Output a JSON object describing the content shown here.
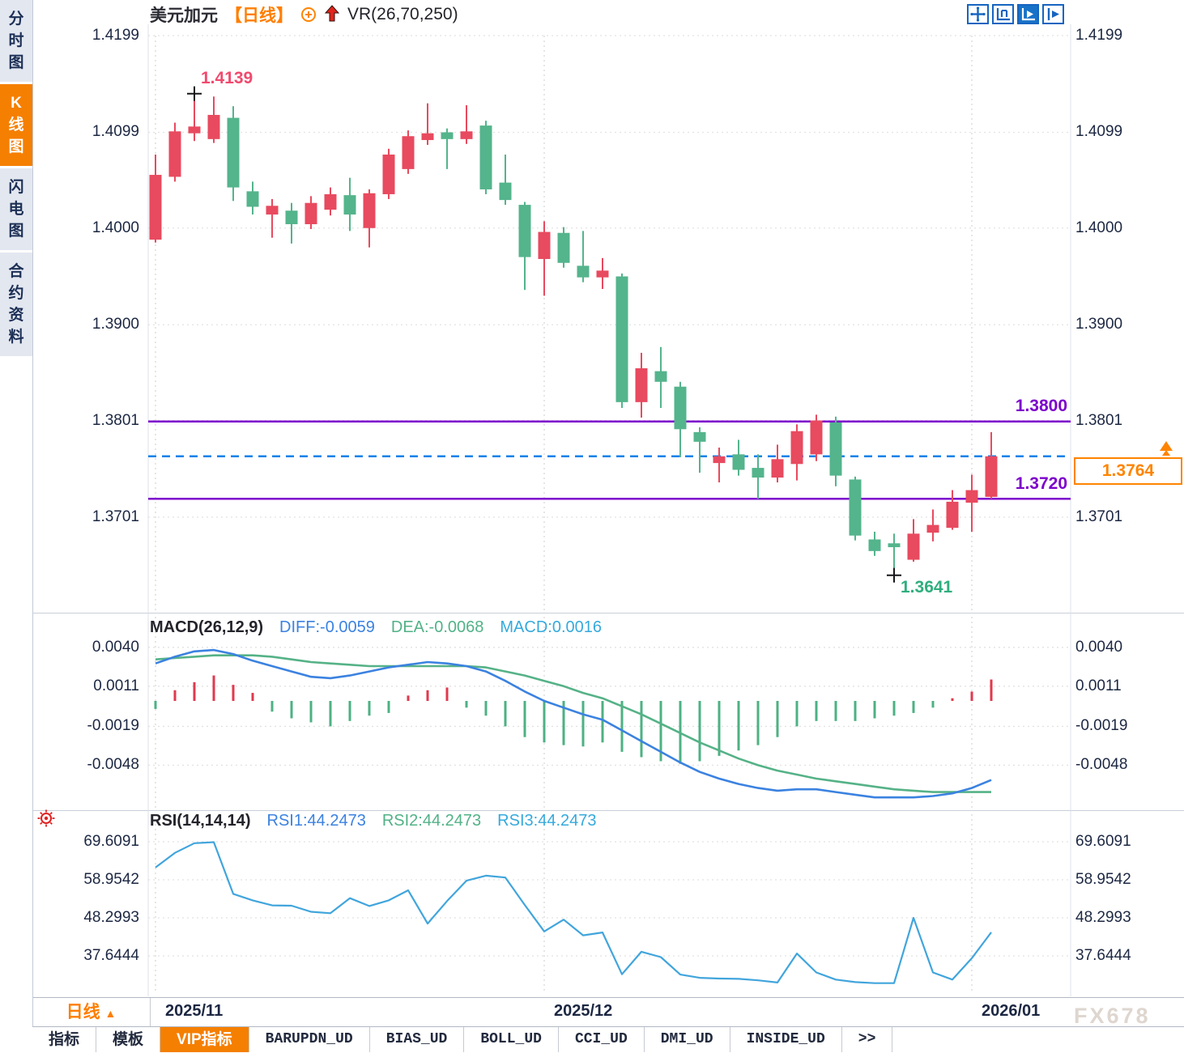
{
  "title": {
    "symbol": "美元加元",
    "period": "【日线】",
    "vr": "VR(26,70,250)"
  },
  "toolbar": {
    "icons": [
      "move-cross-icon",
      "axis-scale-icon",
      "axis-play-icon",
      "pan-right-icon"
    ]
  },
  "sidebar": {
    "items": [
      {
        "label": "分时图",
        "active": false
      },
      {
        "label": "K线图",
        "active": true
      },
      {
        "label": "闪电图",
        "active": false
      },
      {
        "label": "合约资料",
        "active": false
      }
    ]
  },
  "main_chart": {
    "y_axis_labels": [
      "1.4199",
      "1.4099",
      "1.4000",
      "1.3900",
      "1.3801",
      "1.3701"
    ],
    "high_label": "1.4139",
    "low_label": "1.3641",
    "hlines": [
      {
        "label": "1.3800",
        "price": 1.38
      },
      {
        "label": "1.3720",
        "price": 1.372
      }
    ],
    "current_price": {
      "label": "1.3764",
      "price": 1.3764
    }
  },
  "macd": {
    "header": {
      "name": "MACD(26,12,9)",
      "diff": "DIFF:-0.0059",
      "dea": "DEA:-0.0068",
      "macd": "MACD:0.0016"
    },
    "y_axis_labels": [
      "0.0040",
      "0.0011",
      "-0.0019",
      "-0.0048"
    ]
  },
  "rsi": {
    "header": {
      "name": "RSI(14,14,14)",
      "rsi1": "RSI1:44.2473",
      "rsi2": "RSI2:44.2473",
      "rsi3": "RSI3:44.2473"
    },
    "y_axis_labels": [
      "69.6091",
      "58.9542",
      "48.2993",
      "37.6444"
    ]
  },
  "footer": {
    "period_label": "日线",
    "period_arrow": "▲",
    "tabs": [
      {
        "label": "指标",
        "active": false
      },
      {
        "label": "模板",
        "active": false
      },
      {
        "label": "VIP指标",
        "active": true
      },
      {
        "label": "BARUPDN_UD",
        "active": false
      },
      {
        "label": "BIAS_UD",
        "active": false
      },
      {
        "label": "BOLL_UD",
        "active": false
      },
      {
        "label": "CCI_UD",
        "active": false
      },
      {
        "label": "DMI_UD",
        "active": false
      },
      {
        "label": "INSIDE_UD",
        "active": false
      },
      {
        "label": ">>",
        "active": false
      }
    ]
  },
  "watermark": "FX678",
  "colors": {
    "bull_red": "#e84a5f",
    "bear_green": "#54b48c",
    "hline_purple": "#7d00cc",
    "current_blue": "#0c82e8",
    "accent_orange": "#ff8400",
    "diff_blue": "#3b82e0",
    "dea_green": "#55b287",
    "hist_red": "#e0394e",
    "hist_green": "#4db183",
    "rsi_blue": "#41a5dc"
  },
  "chart_data": {
    "type": "candlestick",
    "symbol": "美元加元",
    "period": "日线",
    "x_ticks": [
      {
        "label": "2025/11",
        "index": 0
      },
      {
        "label": "2025/12",
        "index": 20
      },
      {
        "label": "2026/01",
        "index": 42
      }
    ],
    "ylim": [
      1.3641,
      1.4199
    ],
    "candles": {
      "o": [
        1.3988,
        1.4053,
        1.4098,
        1.4092,
        1.4114,
        1.4038,
        1.4014,
        1.4018,
        1.4004,
        1.4019,
        1.4034,
        1.4,
        1.4035,
        1.4061,
        1.4091,
        1.4099,
        1.4092,
        1.4106,
        1.4047,
        1.4024,
        1.3968,
        1.3995,
        1.3961,
        1.3949,
        1.395,
        1.382,
        1.3852,
        1.3836,
        1.3789,
        1.3757,
        1.3766,
        1.3752,
        1.3742,
        1.3756,
        1.3766,
        1.3799,
        1.374,
        1.3678,
        1.3674,
        1.3657,
        1.3685,
        1.369,
        1.3716,
        1.3722
      ],
      "c": [
        1.4055,
        1.41,
        1.4105,
        1.4117,
        1.4042,
        1.4022,
        1.4023,
        1.4004,
        1.4026,
        1.4035,
        1.4014,
        1.4036,
        1.4076,
        1.4095,
        1.4098,
        1.4092,
        1.41,
        1.404,
        1.4029,
        1.397,
        1.3996,
        1.3964,
        1.3949,
        1.3956,
        1.382,
        1.3855,
        1.3841,
        1.3792,
        1.3779,
        1.3764,
        1.375,
        1.3742,
        1.3761,
        1.379,
        1.3801,
        1.3744,
        1.3682,
        1.3666,
        1.367,
        1.3684,
        1.3693,
        1.3717,
        1.3729,
        1.3764
      ],
      "h": [
        1.4076,
        1.4109,
        1.4139,
        1.4136,
        1.4126,
        1.4048,
        1.403,
        1.4026,
        1.4033,
        1.4042,
        1.4052,
        1.404,
        1.4082,
        1.4101,
        1.4129,
        1.4103,
        1.4127,
        1.4111,
        1.4076,
        1.4027,
        1.4007,
        1.4001,
        1.3997,
        1.3969,
        1.3953,
        1.3871,
        1.3877,
        1.3841,
        1.3794,
        1.3773,
        1.3781,
        1.3766,
        1.3776,
        1.3797,
        1.3807,
        1.3805,
        1.3743,
        1.3686,
        1.3684,
        1.3699,
        1.3709,
        1.3729,
        1.3745,
        1.3789
      ],
      "l": [
        1.3985,
        1.4048,
        1.409,
        1.4088,
        1.4028,
        1.4014,
        1.399,
        1.3984,
        1.3999,
        1.4013,
        1.3997,
        1.398,
        1.403,
        1.4056,
        1.4086,
        1.4061,
        1.4087,
        1.4035,
        1.4024,
        1.3936,
        1.393,
        1.3959,
        1.3944,
        1.3937,
        1.3814,
        1.3804,
        1.3814,
        1.3763,
        1.3747,
        1.3737,
        1.3744,
        1.372,
        1.3737,
        1.3739,
        1.3759,
        1.3733,
        1.3677,
        1.3661,
        1.3641,
        1.3655,
        1.3676,
        1.3688,
        1.3686,
        1.372
      ]
    },
    "annotations": [
      {
        "type": "high-marker",
        "index": 2,
        "price": 1.4139,
        "label": "1.4139"
      },
      {
        "type": "low-marker",
        "index": 38,
        "price": 1.3641,
        "label": "1.3641"
      }
    ],
    "macd": {
      "ylim": [
        -0.0078,
        0.005
      ],
      "diff": [
        0.0028,
        0.0033,
        0.0037,
        0.0038,
        0.0035,
        0.003,
        0.0026,
        0.0022,
        0.0018,
        0.0017,
        0.0019,
        0.0022,
        0.0025,
        0.0027,
        0.0029,
        0.0028,
        0.0026,
        0.0022,
        0.0015,
        0.0007,
        0.0,
        -0.0005,
        -0.001,
        -0.0014,
        -0.0022,
        -0.003,
        -0.0038,
        -0.0046,
        -0.0053,
        -0.0058,
        -0.0062,
        -0.0065,
        -0.0067,
        -0.0066,
        -0.0066,
        -0.0068,
        -0.007,
        -0.0072,
        -0.0072,
        -0.0072,
        -0.0071,
        -0.0069,
        -0.0065,
        -0.0059
      ],
      "dea": [
        0.0031,
        0.0032,
        0.0033,
        0.0034,
        0.0034,
        0.0034,
        0.0033,
        0.0031,
        0.0029,
        0.0028,
        0.0027,
        0.0026,
        0.0026,
        0.0026,
        0.0026,
        0.0026,
        0.0026,
        0.0025,
        0.0022,
        0.0019,
        0.0015,
        0.0011,
        0.0006,
        0.0002,
        -0.0004,
        -0.001,
        -0.0017,
        -0.0024,
        -0.0031,
        -0.0037,
        -0.0043,
        -0.0048,
        -0.0052,
        -0.0055,
        -0.0058,
        -0.006,
        -0.0062,
        -0.0064,
        -0.0066,
        -0.0067,
        -0.0068,
        -0.0068,
        -0.0068,
        -0.0068
      ],
      "hist": [
        -0.0006,
        0.0008,
        0.0014,
        0.0019,
        0.0012,
        0.0006,
        -0.0008,
        -0.0013,
        -0.0016,
        -0.0019,
        -0.0015,
        -0.0011,
        -0.0009,
        0.0004,
        0.0008,
        0.001,
        -0.0005,
        -0.0011,
        -0.0019,
        -0.0027,
        -0.0031,
        -0.0033,
        -0.0034,
        -0.0031,
        -0.0038,
        -0.0042,
        -0.0045,
        -0.0047,
        -0.0045,
        -0.0041,
        -0.0037,
        -0.0033,
        -0.0027,
        -0.0019,
        -0.0015,
        -0.0015,
        -0.0015,
        -0.0013,
        -0.0011,
        -0.0009,
        -0.0005,
        0.0002,
        0.0007,
        0.0016
      ]
    },
    "rsi": {
      "ylim": [
        25,
        75
      ],
      "values": [
        62.4,
        66.5,
        69.2,
        69.5,
        55.0,
        53.2,
        51.8,
        51.7,
        50.0,
        49.6,
        53.8,
        51.6,
        53.2,
        56.0,
        46.7,
        53.0,
        58.7,
        60.1,
        59.6,
        51.9,
        44.5,
        47.8,
        43.4,
        44.2,
        32.5,
        38.8,
        37.3,
        32.4,
        31.5,
        31.3,
        31.2,
        30.8,
        30.2,
        38.3,
        33.0,
        31.0,
        30.3,
        30.0,
        30.0,
        48.3,
        33.0,
        31.0,
        37.0,
        44.2473
      ]
    }
  }
}
